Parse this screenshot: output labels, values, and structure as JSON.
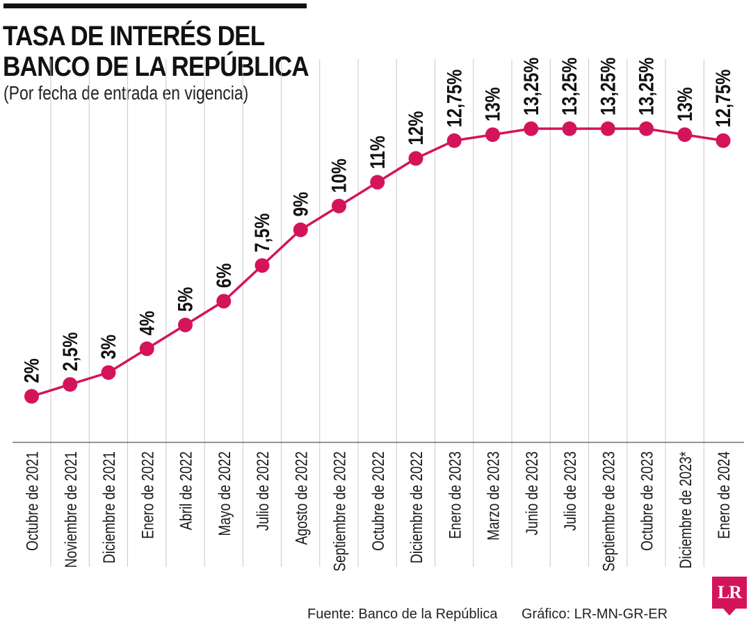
{
  "title_line1": "TASA DE INTERÉS DEL",
  "title_line2": "BANCO DE LA REPÚBLICA",
  "subtitle": "(Por fecha de entrada en vigencia)",
  "source": "Fuente: Banco de la República",
  "credit": "Gráfico: LR-MN-GR-ER",
  "logo_text": "LR",
  "colors": {
    "accent": "#d4145a",
    "text": "#111111",
    "grid": "#c8c8c8"
  },
  "chart_data": {
    "type": "line",
    "x": [
      "Octubre de 2021",
      "Noviembre de 2021",
      "Diciembre de 2021",
      "Enero de 2022",
      "Abril de 2022",
      "Mayo de 2022",
      "Julio de 2022",
      "Agosto de 2022",
      "Septiembre de 2022",
      "Octubre de 2022",
      "Diciembre de 2022",
      "Enero de 2023",
      "Marzo de 2023",
      "Junio de 2023",
      "Julio de 2023",
      "Septiembre de 2023",
      "Octubre de 2023",
      "Diciembre de 2023*",
      "Enero de 2024"
    ],
    "values": [
      2,
      2.5,
      3,
      4,
      5,
      6,
      7.5,
      9,
      10,
      11,
      12,
      12.75,
      13,
      13.25,
      13.25,
      13.25,
      13.25,
      13,
      12.75
    ],
    "labels": [
      "2%",
      "2,5%",
      "3%",
      "4%",
      "5%",
      "6%",
      "7,5%",
      "9%",
      "10%",
      "11%",
      "12%",
      "12,75%",
      "13%",
      "13,25%",
      "13,25%",
      "13,25%",
      "13,25%",
      "13%",
      "12,75%"
    ],
    "grid": true,
    "legend": "none"
  }
}
